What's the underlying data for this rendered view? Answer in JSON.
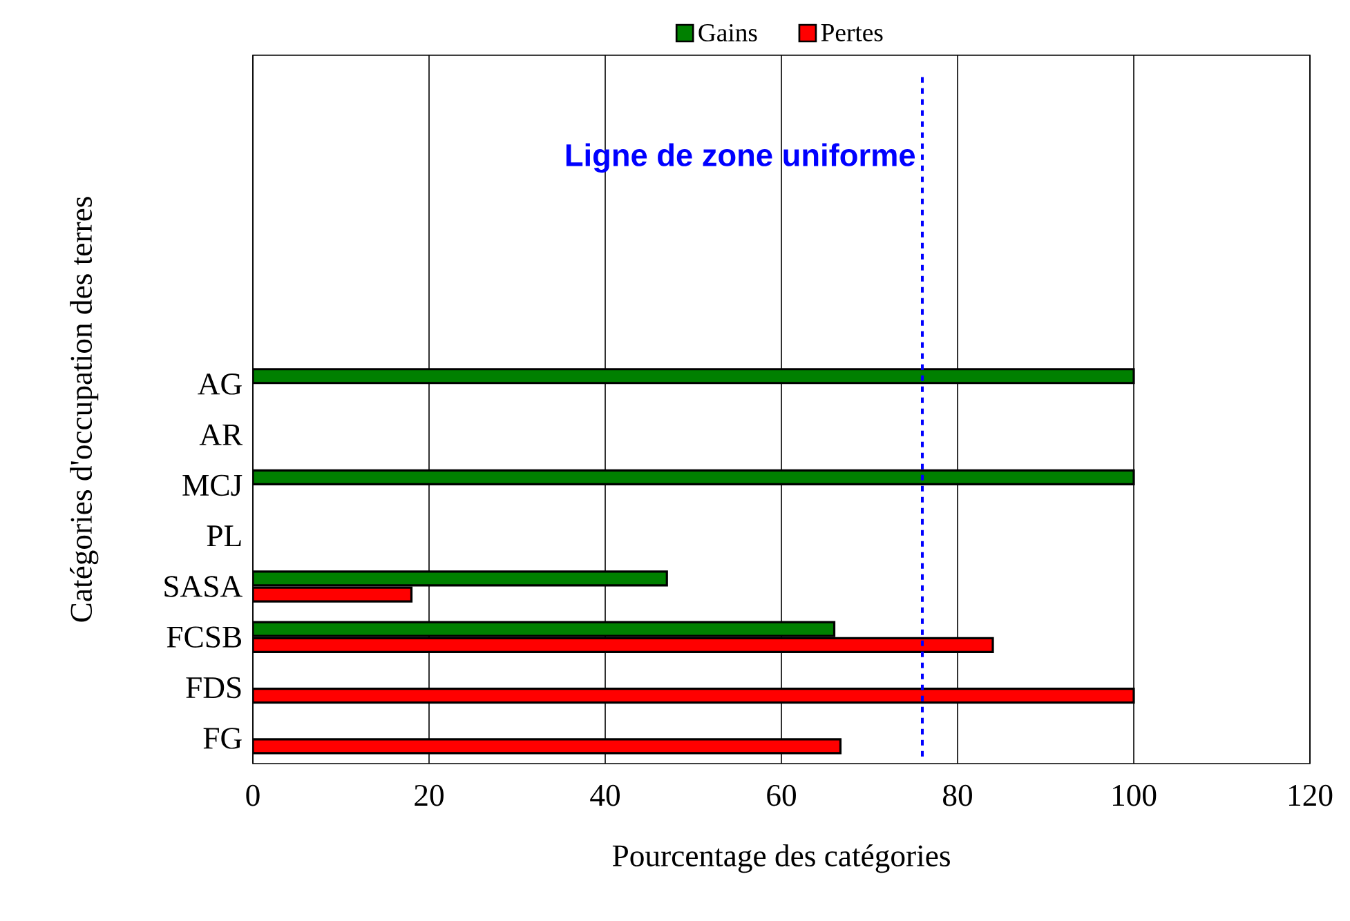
{
  "chart_data": {
    "type": "bar",
    "orientation": "horizontal",
    "xlabel": "Pourcentage des catégories",
    "ylabel": "Catégories d'occupation des terres",
    "categories": [
      null,
      null,
      null,
      null,
      null,
      null,
      "AG",
      "AR",
      "MCJ",
      "PL",
      "SASA",
      "FCSB",
      "FDS",
      "FG"
    ],
    "series": [
      {
        "name": "Gains",
        "color": "#008000",
        "values": [
          null,
          null,
          null,
          null,
          null,
          null,
          100,
          null,
          100,
          null,
          47,
          66,
          null,
          null
        ]
      },
      {
        "name": "Pertes",
        "color": "#ff0000",
        "values": [
          null,
          null,
          null,
          null,
          null,
          null,
          null,
          null,
          null,
          null,
          18,
          84,
          100,
          66.7
        ]
      }
    ],
    "xlim": [
      0,
      120
    ],
    "xticks": [
      0,
      20,
      40,
      60,
      80,
      100,
      120
    ],
    "grid": "x",
    "legend": "top",
    "ref_lines": [
      {
        "axis": "x",
        "value": 76,
        "label": "Ligne de zone uniforme",
        "color": "#0000ff",
        "line_style": "dashed"
      }
    ]
  }
}
